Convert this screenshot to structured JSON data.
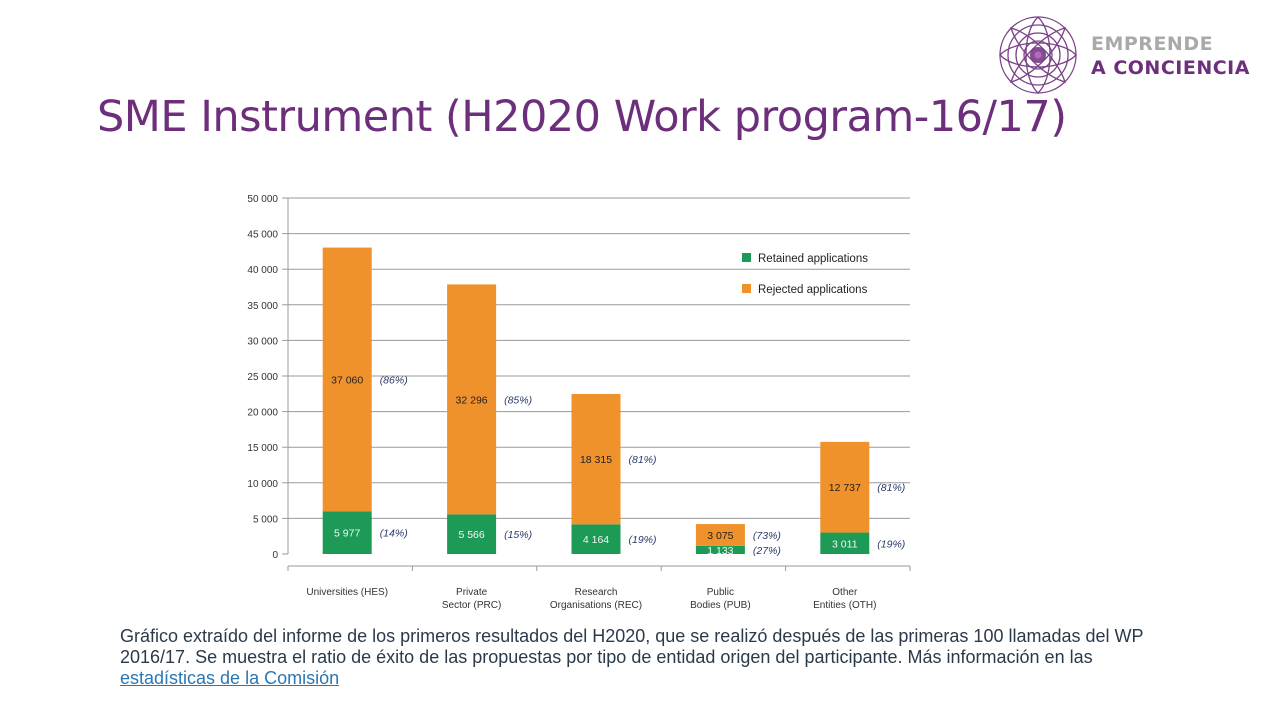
{
  "slide": {
    "title": "SME Instrument (H2020 Work program-16/17)",
    "caption": "Gráfico extraído del informe de los primeros resultados del H2020, que se realizó después de las primeras 100 llamadas del WP 2016/17. Se muestra el ratio de éxito de las propuestas por tipo de entidad origen del participante. Más información en las ",
    "caption_link": "estadísticas de la Comisión"
  },
  "logo": {
    "line1": "EMPRENDE",
    "line2_prefix": "A ",
    "line2_accent": "CONCIENCIA"
  },
  "colors": {
    "title": "#6d2f7b",
    "retained": "#1e9a57",
    "rejected": "#f0922b",
    "grid": "#9a9a9a",
    "logo_gray": "#a9a9a9"
  },
  "chart_data": {
    "type": "bar",
    "stacked": true,
    "title": "",
    "xlabel": "",
    "ylabel": "",
    "ylim": [
      0,
      50000
    ],
    "y_ticks": [
      "0",
      "5 000",
      "10 000",
      "15 000",
      "20 000",
      "25 000",
      "30 000",
      "35 000",
      "40 000",
      "45 000",
      "50 000"
    ],
    "y_tick_values": [
      0,
      5000,
      10000,
      15000,
      20000,
      25000,
      30000,
      35000,
      40000,
      45000,
      50000
    ],
    "grid": true,
    "legend_position": "top-right",
    "categories": [
      [
        "Universities (HES)"
      ],
      [
        "Private",
        "Sector (PRC)"
      ],
      [
        "Research",
        "Organisations (REC)"
      ],
      [
        "Public",
        "Bodies (PUB)"
      ],
      [
        "Other",
        "Entities (OTH)"
      ]
    ],
    "series": [
      {
        "name": "Retained applications",
        "values": [
          5977,
          5566,
          4164,
          1133,
          3011
        ],
        "labels": [
          "5 977",
          "5 566",
          "4 164",
          "1 133",
          "3 011"
        ],
        "percents": [
          "(14%)",
          "(15%)",
          "(19%)",
          "(27%)",
          "(19%)"
        ]
      },
      {
        "name": "Rejected applications",
        "values": [
          37060,
          32296,
          18315,
          3075,
          12737
        ],
        "labels": [
          "37 060",
          "32 296",
          "18 315",
          "3 075",
          "12 737"
        ],
        "percents": [
          "(86%)",
          "(85%)",
          "(81%)",
          "(73%)",
          "(81%)"
        ]
      }
    ]
  }
}
